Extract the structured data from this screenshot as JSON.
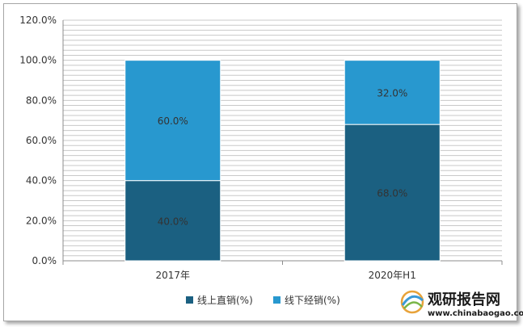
{
  "chart_data": {
    "type": "bar",
    "stacked": true,
    "categories": [
      "2017年",
      "2020年H1"
    ],
    "series": [
      {
        "name": "线上直销(%)",
        "values": [
          40.0,
          68.0
        ],
        "color": "#1b6081"
      },
      {
        "name": "线下经销(%)",
        "values": [
          60.0,
          32.0
        ],
        "color": "#2898cf"
      }
    ],
    "ylim": [
      0,
      120
    ],
    "ytick_step": 20,
    "yticks": [
      "0.0%",
      "20.0%",
      "40.0%",
      "60.0%",
      "80.0%",
      "100.0%",
      "120.0%"
    ],
    "grid": true,
    "legend_position": "bottom",
    "data_label_suffix": "%"
  },
  "watermark": {
    "brand_cn": "观研报告网",
    "brand_en": "www.chinabaogao.com"
  }
}
